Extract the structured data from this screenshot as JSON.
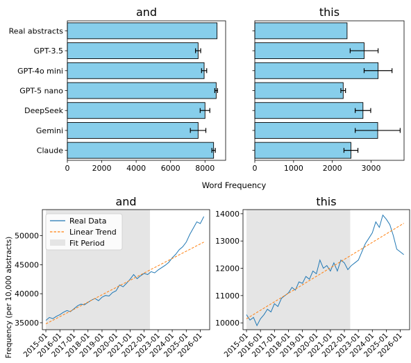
{
  "shared_xlabel": "Word Frequency",
  "chart_data": [
    {
      "type": "bar",
      "orientation": "horizontal",
      "title": "and",
      "categories": [
        "Real abstracts",
        "GPT-3.5",
        "GPT-4o mini",
        "GPT-5 nano",
        "DeepSeek",
        "Gemini",
        "Claude"
      ],
      "values": [
        8700,
        7600,
        7950,
        8650,
        8000,
        7600,
        8500
      ],
      "errors": [
        null,
        150,
        150,
        80,
        280,
        450,
        100
      ],
      "xlim": [
        0,
        9200
      ],
      "xticks": [
        "0",
        "2000",
        "4000",
        "6000",
        "8000"
      ],
      "bar_color": "#87ceeb",
      "error_color": "#000000"
    },
    {
      "type": "bar",
      "orientation": "horizontal",
      "title": "this",
      "categories": [
        "Real abstracts",
        "GPT-3.5",
        "GPT-4o mini",
        "GPT-5 nano",
        "DeepSeek",
        "Gemini",
        "Claude"
      ],
      "values": [
        2380,
        2820,
        3180,
        2280,
        2790,
        3170,
        2480
      ],
      "errors": [
        null,
        360,
        360,
        60,
        200,
        580,
        180
      ],
      "xlim": [
        0,
        3850
      ],
      "xticks": [
        "0",
        "1000",
        "2000",
        "3000"
      ],
      "bar_color": "#87ceeb",
      "error_color": "#000000"
    },
    {
      "type": "line",
      "title": "and",
      "ylabel": "Frequency (per 10,000 abstracts)",
      "ylim": [
        33800,
        54500
      ],
      "yticks": [
        "35000",
        "40000",
        "45000",
        "50000"
      ],
      "xlim": [
        "2014-10",
        "2026-09"
      ],
      "xticks": [
        "2015-01",
        "2016-01",
        "2017-01",
        "2018-01",
        "2019-01",
        "2020-01",
        "2021-01",
        "2022-01",
        "2023-01",
        "2024-01",
        "2025-01",
        "2026-01"
      ],
      "fit_period": [
        "2015-01",
        "2022-06"
      ],
      "legend": {
        "placement": "upper-left",
        "entries": [
          "Real Data",
          "Linear Trend",
          "Fit Period"
        ]
      },
      "series": [
        {
          "name": "Real Data",
          "color": "#1f77b4",
          "points": [
            [
              "2015-01",
              35400
            ],
            [
              "2015-04",
              35900
            ],
            [
              "2015-07",
              35700
            ],
            [
              "2015-10",
              36100
            ],
            [
              "2016-01",
              36400
            ],
            [
              "2016-04",
              36800
            ],
            [
              "2016-07",
              37100
            ],
            [
              "2016-10",
              36900
            ],
            [
              "2017-01",
              37400
            ],
            [
              "2017-04",
              37900
            ],
            [
              "2017-07",
              38200
            ],
            [
              "2017-10",
              38100
            ],
            [
              "2018-01",
              38500
            ],
            [
              "2018-04",
              38900
            ],
            [
              "2018-07",
              39200
            ],
            [
              "2018-10",
              38800
            ],
            [
              "2019-01",
              39400
            ],
            [
              "2019-04",
              39700
            ],
            [
              "2019-07",
              39600
            ],
            [
              "2019-10",
              40200
            ],
            [
              "2020-01",
              40500
            ],
            [
              "2020-04",
              41500
            ],
            [
              "2020-07",
              41200
            ],
            [
              "2020-10",
              41800
            ],
            [
              "2021-01",
              42500
            ],
            [
              "2021-04",
              43300
            ],
            [
              "2021-07",
              42600
            ],
            [
              "2021-10",
              43100
            ],
            [
              "2022-01",
              43500
            ],
            [
              "2022-04",
              43300
            ],
            [
              "2022-07",
              43800
            ],
            [
              "2022-10",
              43600
            ],
            [
              "2023-01",
              44100
            ],
            [
              "2023-04",
              44500
            ],
            [
              "2023-07",
              44900
            ],
            [
              "2023-10",
              45400
            ],
            [
              "2024-01",
              46200
            ],
            [
              "2024-04",
              46800
            ],
            [
              "2024-07",
              47600
            ],
            [
              "2024-10",
              48100
            ],
            [
              "2025-01",
              48900
            ],
            [
              "2025-04",
              50200
            ],
            [
              "2025-07",
              51300
            ],
            [
              "2025-10",
              52400
            ],
            [
              "2026-01",
              52100
            ],
            [
              "2026-04",
              53300
            ]
          ]
        },
        {
          "name": "Linear Trend",
          "color": "#ff7f0e",
          "style": "dashed",
          "points": [
            [
              "2015-01",
              34800
            ],
            [
              "2026-04",
              48900
            ]
          ]
        }
      ]
    },
    {
      "type": "line",
      "title": "this",
      "ylim": [
        9750,
        14150
      ],
      "yticks": [
        "10000",
        "11000",
        "12000",
        "13000",
        "14000"
      ],
      "xlim": [
        "2014-10",
        "2026-09"
      ],
      "xticks": [
        "2015-01",
        "2016-01",
        "2017-01",
        "2018-01",
        "2019-01",
        "2020-01",
        "2021-01",
        "2022-01",
        "2023-01",
        "2024-01",
        "2025-01",
        "2026-01"
      ],
      "fit_period": [
        "2015-01",
        "2022-06"
      ],
      "series": [
        {
          "name": "Real Data",
          "color": "#1f77b4",
          "points": [
            [
              "2015-01",
              10300
            ],
            [
              "2015-04",
              10100
            ],
            [
              "2015-07",
              10200
            ],
            [
              "2015-10",
              9900
            ],
            [
              "2016-01",
              10150
            ],
            [
              "2016-04",
              10300
            ],
            [
              "2016-07",
              10500
            ],
            [
              "2016-10",
              10400
            ],
            [
              "2017-01",
              10700
            ],
            [
              "2017-04",
              10600
            ],
            [
              "2017-07",
              10900
            ],
            [
              "2017-10",
              11000
            ],
            [
              "2018-01",
              11100
            ],
            [
              "2018-04",
              11300
            ],
            [
              "2018-07",
              11200
            ],
            [
              "2018-10",
              11500
            ],
            [
              "2019-01",
              11450
            ],
            [
              "2019-04",
              11700
            ],
            [
              "2019-07",
              11600
            ],
            [
              "2019-10",
              11900
            ],
            [
              "2020-01",
              11800
            ],
            [
              "2020-04",
              12300
            ],
            [
              "2020-07",
              12000
            ],
            [
              "2020-10",
              12100
            ],
            [
              "2021-01",
              11900
            ],
            [
              "2021-04",
              12200
            ],
            [
              "2021-07",
              11900
            ],
            [
              "2021-10",
              12300
            ],
            [
              "2022-01",
              12200
            ],
            [
              "2022-04",
              11950
            ],
            [
              "2022-07",
              12100
            ],
            [
              "2022-10",
              12200
            ],
            [
              "2023-01",
              12300
            ],
            [
              "2023-04",
              12600
            ],
            [
              "2023-07",
              12900
            ],
            [
              "2023-10",
              13100
            ],
            [
              "2024-01",
              13300
            ],
            [
              "2024-04",
              13700
            ],
            [
              "2024-07",
              13500
            ],
            [
              "2024-10",
              13950
            ],
            [
              "2025-01",
              13800
            ],
            [
              "2025-04",
              13600
            ],
            [
              "2025-07",
              13200
            ],
            [
              "2025-10",
              12700
            ],
            [
              "2026-01",
              12600
            ],
            [
              "2026-04",
              12500
            ]
          ]
        },
        {
          "name": "Linear Trend",
          "color": "#ff7f0e",
          "style": "dashed",
          "points": [
            [
              "2015-01",
              10150
            ],
            [
              "2026-04",
              13650
            ]
          ]
        }
      ],
      "fit_color": "#e5e5e5"
    }
  ]
}
